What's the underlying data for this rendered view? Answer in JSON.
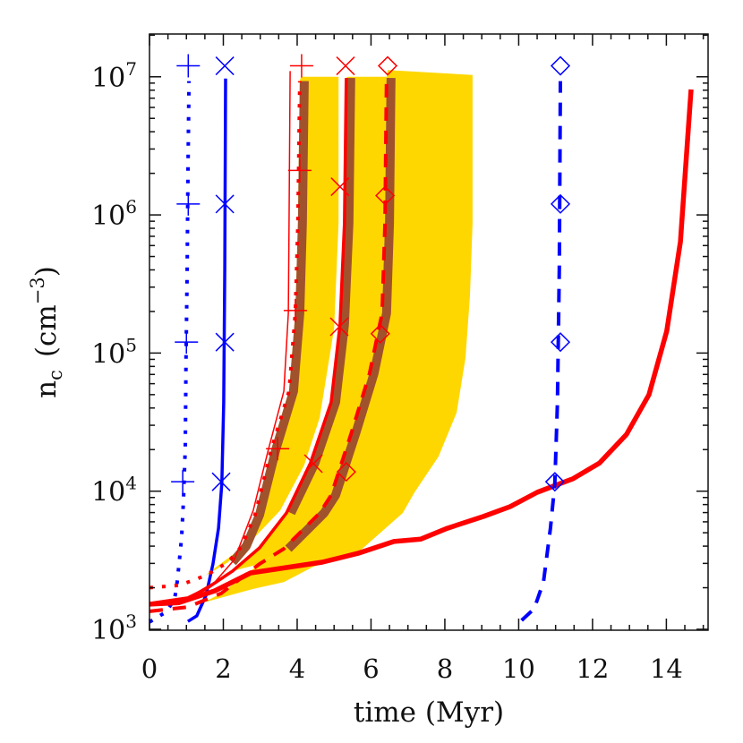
{
  "chart_data": {
    "type": "line",
    "title": "",
    "xlabel": "time (Myr)",
    "ylabel_main": "n",
    "ylabel_sub": "c",
    "ylabel_unit": "(cm",
    "ylabel_unit_exp": "−3",
    "ylabel_close": ")",
    "xlim": [
      0,
      15.13
    ],
    "ylim": [
      985,
      20400000
    ],
    "yscale": "log",
    "grid": false,
    "x_ticks": [
      {
        "value": 0,
        "label": "0"
      },
      {
        "value": 2,
        "label": "2"
      },
      {
        "value": 4,
        "label": "4"
      },
      {
        "value": 6,
        "label": "6"
      },
      {
        "value": 8,
        "label": "8"
      },
      {
        "value": 10,
        "label": "10"
      },
      {
        "value": 12,
        "label": "12"
      },
      {
        "value": 14,
        "label": "14"
      }
    ],
    "x_minor_step": 0.5,
    "y_ticks": [
      {
        "value": 1000,
        "base": "10",
        "exp": "3"
      },
      {
        "value": 10000,
        "base": "10",
        "exp": "4"
      },
      {
        "value": 100000,
        "base": "10",
        "exp": "5"
      },
      {
        "value": 1000000,
        "base": "10",
        "exp": "6"
      },
      {
        "value": 10000000,
        "base": "10",
        "exp": "7"
      }
    ],
    "colors": {
      "blue": "#0000ff",
      "red": "#ff0000",
      "band": "#ffd700",
      "band_edge": "#a0522d",
      "axis": "#111111"
    },
    "bands": [
      {
        "color": "#ffd700",
        "points": [
          [
            1.53,
            2450
          ],
          [
            2.13,
            3060
          ],
          [
            2.5,
            4000
          ],
          [
            2.86,
            6750
          ],
          [
            3.3,
            20000
          ],
          [
            3.78,
            53000
          ],
          [
            3.95,
            194000
          ],
          [
            4.02,
            870000
          ],
          [
            4.07,
            9300000
          ],
          [
            4.1,
            10000000
          ],
          [
            5.12,
            10000000
          ],
          [
            5.12,
            870000
          ],
          [
            5.0,
            150000
          ],
          [
            4.61,
            34000
          ],
          [
            4.19,
            15400
          ],
          [
            3.54,
            7250
          ],
          [
            2.74,
            4320
          ],
          [
            1.6,
            2570
          ]
        ]
      },
      {
        "color": "#ffd700",
        "points": [
          [
            2.25,
            2640
          ],
          [
            2.98,
            3890
          ],
          [
            3.71,
            6950
          ],
          [
            4.36,
            16000
          ],
          [
            4.92,
            44000
          ],
          [
            5.16,
            160000
          ],
          [
            5.28,
            870000
          ],
          [
            5.33,
            9800000
          ],
          [
            5.36,
            10000000
          ],
          [
            6.42,
            10000000
          ],
          [
            6.38,
            870000
          ],
          [
            6.3,
            194000
          ],
          [
            5.96,
            71000
          ],
          [
            5.48,
            27000
          ],
          [
            4.92,
            9350
          ],
          [
            4.61,
            6950
          ],
          [
            3.64,
            3830
          ],
          [
            2.98,
            2970
          ]
        ]
      },
      {
        "color": "#ffd700",
        "points": [
          [
            1.45,
            1560
          ],
          [
            2.81,
            1960
          ],
          [
            3.64,
            2200
          ],
          [
            4.44,
            2840
          ],
          [
            5.65,
            3600
          ],
          [
            6.86,
            6950
          ],
          [
            7.18,
            9800
          ],
          [
            7.83,
            17800
          ],
          [
            8.32,
            37000
          ],
          [
            8.56,
            92000
          ],
          [
            8.68,
            260000
          ],
          [
            8.75,
            870000
          ],
          [
            8.75,
            10300000
          ],
          [
            6.45,
            11200000
          ],
          [
            6.42,
            9800000
          ],
          [
            6.38,
            870000
          ],
          [
            6.3,
            194000
          ],
          [
            5.96,
            71000
          ],
          [
            5.48,
            27000
          ],
          [
            4.92,
            9350
          ],
          [
            4.61,
            6950
          ],
          [
            3.64,
            3830
          ],
          [
            2.98,
            2970
          ],
          [
            1.94,
            1820
          ]
        ]
      }
    ],
    "edge_bands": [
      {
        "color": "#a0522d",
        "min_n": 3000,
        "follows": 2
      },
      {
        "color": "#a0522d",
        "min_n": 4000,
        "follows": 4
      },
      {
        "color": "#a0522d",
        "min_n": 3000,
        "follows": 5
      }
    ],
    "series": [
      {
        "color": "#0000ff",
        "style": "dotted",
        "marker": "plus",
        "points": [
          [
            0,
            1130
          ],
          [
            0.44,
            1330
          ],
          [
            0.68,
            1640
          ],
          [
            0.75,
            2200
          ],
          [
            0.8,
            2970
          ],
          [
            0.87,
            4650
          ],
          [
            0.92,
            8450
          ],
          [
            0.97,
            21000
          ],
          [
            0.99,
            92000
          ],
          [
            1.02,
            410000
          ],
          [
            1.04,
            1800000
          ],
          [
            1.07,
            9300000
          ]
        ],
        "markers": [
          [
            0.9,
            11700
          ],
          [
            1.0,
            120000
          ],
          [
            1.05,
            1200000
          ],
          [
            1.05,
            12000000
          ]
        ]
      },
      {
        "color": "#0000ff",
        "style": "solid",
        "marker": "cross",
        "points": [
          [
            1.04,
            1140
          ],
          [
            1.28,
            1250
          ],
          [
            1.53,
            1760
          ],
          [
            1.72,
            2970
          ],
          [
            1.87,
            5400
          ],
          [
            1.96,
            11400
          ],
          [
            2.01,
            43500
          ],
          [
            2.04,
            410000
          ],
          [
            2.06,
            9700000
          ]
        ],
        "markers": [
          [
            1.94,
            11700
          ],
          [
            2.04,
            120000
          ],
          [
            2.04,
            1200000
          ],
          [
            2.04,
            12000000
          ]
        ]
      },
      {
        "color": "#ff0000",
        "style": "dotted",
        "marker": "none",
        "points": [
          [
            0,
            2000
          ],
          [
            0.8,
            2080
          ],
          [
            1.53,
            2450
          ],
          [
            2.13,
            3060
          ],
          [
            2.5,
            4000
          ],
          [
            2.86,
            6750
          ],
          [
            3.3,
            20000
          ],
          [
            3.78,
            53000
          ],
          [
            3.95,
            194000
          ],
          [
            4.02,
            870000
          ],
          [
            4.07,
            9300000
          ]
        ],
        "markers": []
      },
      {
        "color": "#ff0000",
        "style": "thin",
        "marker": "plus",
        "points": [
          [
            0,
            1560
          ],
          [
            1.04,
            1690
          ],
          [
            1.77,
            2200
          ],
          [
            2.3,
            3200
          ],
          [
            2.81,
            7250
          ],
          [
            3.22,
            20000
          ],
          [
            3.64,
            53000
          ],
          [
            3.76,
            194000
          ],
          [
            3.78,
            870000
          ],
          [
            3.81,
            11000000
          ]
        ],
        "markers": [
          [
            3.47,
            20300
          ],
          [
            3.95,
            203000
          ],
          [
            4.07,
            2100000
          ],
          [
            4.12,
            12000000
          ]
        ]
      },
      {
        "color": "#ff0000",
        "style": "solid",
        "marker": "cross",
        "points": [
          [
            0,
            1540
          ],
          [
            1.04,
            1690
          ],
          [
            1.53,
            1960
          ],
          [
            2.25,
            2640
          ],
          [
            2.98,
            3890
          ],
          [
            3.71,
            6950
          ],
          [
            4.36,
            16000
          ],
          [
            4.92,
            44000
          ],
          [
            5.16,
            160000
          ],
          [
            5.28,
            870000
          ],
          [
            5.33,
            9800000
          ]
        ],
        "markers": [
          [
            4.44,
            15800
          ],
          [
            5.14,
            155000
          ],
          [
            5.16,
            1600000
          ],
          [
            5.31,
            12000000
          ]
        ]
      },
      {
        "color": "#ff0000",
        "style": "dashed",
        "marker": "diamond",
        "points": [
          [
            0,
            1350
          ],
          [
            1.04,
            1450
          ],
          [
            1.94,
            1820
          ],
          [
            2.98,
            2970
          ],
          [
            3.64,
            3830
          ],
          [
            4.61,
            6950
          ],
          [
            4.92,
            9350
          ],
          [
            5.48,
            27000
          ],
          [
            5.96,
            71000
          ],
          [
            6.3,
            194000
          ],
          [
            6.38,
            870000
          ],
          [
            6.42,
            9800000
          ]
        ],
        "markers": [
          [
            5.33,
            13800
          ],
          [
            6.25,
            138000
          ],
          [
            6.38,
            1380000
          ],
          [
            6.45,
            12000000
          ]
        ]
      },
      {
        "color": "#ff0000",
        "style": "thick",
        "marker": "none",
        "points": [
          [
            0,
            1520
          ],
          [
            0.8,
            1560
          ],
          [
            1.77,
            1900
          ],
          [
            2.74,
            2560
          ],
          [
            3.71,
            2800
          ],
          [
            4.68,
            3060
          ],
          [
            5.65,
            3550
          ],
          [
            6.62,
            4320
          ],
          [
            7.35,
            4500
          ],
          [
            8.07,
            5390
          ],
          [
            9.04,
            6550
          ],
          [
            9.77,
            7740
          ],
          [
            10.5,
            9800
          ],
          [
            11.47,
            12300
          ],
          [
            12.19,
            16000
          ],
          [
            12.92,
            25800
          ],
          [
            13.53,
            50000
          ],
          [
            14.01,
            144000
          ],
          [
            14.38,
            640000
          ],
          [
            14.67,
            8100000
          ]
        ],
        "markers": []
      },
      {
        "color": "#0000ff",
        "style": "dashed",
        "marker": "diamond",
        "points": [
          [
            10.08,
            1160
          ],
          [
            10.42,
            1410
          ],
          [
            10.67,
            2200
          ],
          [
            10.86,
            5400
          ],
          [
            10.98,
            11400
          ],
          [
            11.05,
            43500
          ],
          [
            11.1,
            410000
          ],
          [
            11.13,
            9300000
          ]
        ],
        "markers": [
          [
            10.98,
            11700
          ],
          [
            11.13,
            120000
          ],
          [
            11.13,
            1200000
          ],
          [
            11.13,
            12000000
          ]
        ]
      }
    ]
  }
}
